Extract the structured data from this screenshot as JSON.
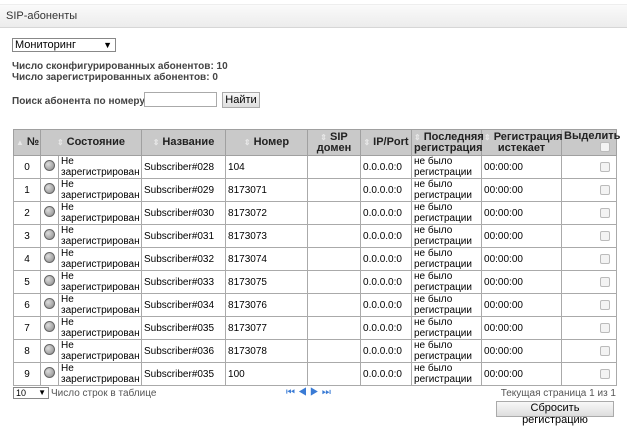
{
  "title": "SIP-абоненты",
  "mode_select": "Мониторинг",
  "stats": {
    "configured": "Число сконфигурированных абонентов: 10",
    "registered": "Число зарегистрированных абонентов: 0"
  },
  "search": {
    "label": "Поиск абонента по номеру",
    "value": "",
    "button": "Найти"
  },
  "columns": [
    "№",
    "Состояние",
    "Название",
    "Номер",
    "SIP домен",
    "IP/Port",
    "Последняя регистрация",
    "Регистрация истекает",
    "Выделить"
  ],
  "rows": [
    {
      "n": "0",
      "state": "Не зарегистрирован",
      "name": "Subscriber#028",
      "number": "104",
      "domain": "",
      "ip": "0.0.0.0:0",
      "last": "не было регистрации",
      "expires": "00:00:00"
    },
    {
      "n": "1",
      "state": "Не зарегистрирован",
      "name": "Subscriber#029",
      "number": "8173071",
      "domain": "",
      "ip": "0.0.0.0:0",
      "last": "не было регистрации",
      "expires": "00:00:00"
    },
    {
      "n": "2",
      "state": "Не зарегистрирован",
      "name": "Subscriber#030",
      "number": "8173072",
      "domain": "",
      "ip": "0.0.0.0:0",
      "last": "не было регистрации",
      "expires": "00:00:00"
    },
    {
      "n": "3",
      "state": "Не зарегистрирован",
      "name": "Subscriber#031",
      "number": "8173073",
      "domain": "",
      "ip": "0.0.0.0:0",
      "last": "не было регистрации",
      "expires": "00:00:00"
    },
    {
      "n": "4",
      "state": "Не зарегистрирован",
      "name": "Subscriber#032",
      "number": "8173074",
      "domain": "",
      "ip": "0.0.0.0:0",
      "last": "не было регистрации",
      "expires": "00:00:00"
    },
    {
      "n": "5",
      "state": "Не зарегистрирован",
      "name": "Subscriber#033",
      "number": "8173075",
      "domain": "",
      "ip": "0.0.0.0:0",
      "last": "не было регистрации",
      "expires": "00:00:00"
    },
    {
      "n": "6",
      "state": "Не зарегистрирован",
      "name": "Subscriber#034",
      "number": "8173076",
      "domain": "",
      "ip": "0.0.0.0:0",
      "last": "не было регистрации",
      "expires": "00:00:00"
    },
    {
      "n": "7",
      "state": "Не зарегистрирован",
      "name": "Subscriber#035",
      "number": "8173077",
      "domain": "",
      "ip": "0.0.0.0:0",
      "last": "не было регистрации",
      "expires": "00:00:00"
    },
    {
      "n": "8",
      "state": "Не зарегистрирован",
      "name": "Subscriber#036",
      "number": "8173078",
      "domain": "",
      "ip": "0.0.0.0:0",
      "last": "не было регистрации",
      "expires": "00:00:00"
    },
    {
      "n": "9",
      "state": "Не зарегистрирован",
      "name": "Subscriber#035",
      "number": "100",
      "domain": "",
      "ip": "0.0.0.0:0",
      "last": "не было регистрации",
      "expires": "00:00:00"
    }
  ],
  "footer": {
    "rows_per_page": "10",
    "rows_label": "Число строк в таблице",
    "page_info": "Текущая страница 1 из 1"
  },
  "reset_button": "Сбросить регистрацию"
}
